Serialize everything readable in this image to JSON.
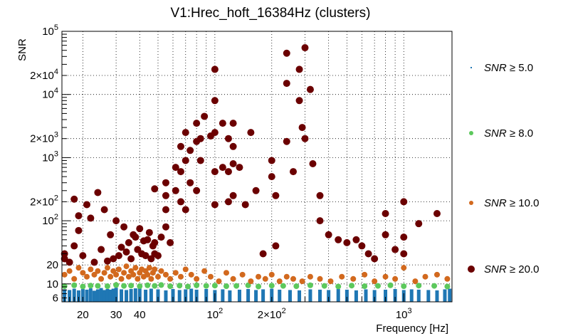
{
  "chart_data": {
    "type": "scatter",
    "title": "V1:Hrec_hoft_16384Hz (clusters)",
    "xlabel": "Frequency [Hz]",
    "ylabel": "SNR",
    "xscale": "log",
    "yscale": "log",
    "xlim": [
      15.5,
      1800
    ],
    "ylim": [
      5.2,
      100000
    ],
    "grid": true,
    "legend_position": "right",
    "x_ticks": [
      {
        "v": 20,
        "label": "20"
      },
      {
        "v": 30,
        "label": "30"
      },
      {
        "v": 40,
        "label": "40"
      },
      {
        "v": 100,
        "label": "10",
        "sup": "2"
      },
      {
        "v": 200,
        "label": "2×10",
        "sup": "2"
      },
      {
        "v": 1000,
        "label": "10",
        "sup": "3"
      }
    ],
    "y_ticks": [
      {
        "v": 6,
        "label": "6"
      },
      {
        "v": 10,
        "label": "10"
      },
      {
        "v": 20,
        "label": "20"
      },
      {
        "v": 100,
        "label": "10",
        "sup": "2"
      },
      {
        "v": 200,
        "label": "2×10",
        "sup": "2"
      },
      {
        "v": 1000,
        "label": "10",
        "sup": "3"
      },
      {
        "v": 2000,
        "label": "2×10",
        "sup": "3"
      },
      {
        "v": 10000,
        "label": "10",
        "sup": "4"
      },
      {
        "v": 20000,
        "label": "2×10",
        "sup": "4"
      },
      {
        "v": 100000,
        "label": "10",
        "sup": "5"
      }
    ],
    "series": [
      {
        "name": "SNR ≥ 5.0",
        "label_var": "SNR",
        "label_rel": "≥ 5.0",
        "color": "#1f77b4",
        "marker": "bar",
        "x": [
          16,
          17,
          18,
          19,
          20,
          21,
          22,
          23,
          24,
          25,
          26,
          27,
          28,
          29,
          30,
          32,
          34,
          36,
          38,
          40,
          43,
          46,
          50,
          55,
          60,
          65,
          70,
          75,
          80,
          90,
          100,
          110,
          120,
          135,
          150,
          165,
          180,
          200,
          220,
          250,
          280,
          320,
          360,
          400,
          450,
          500,
          560,
          630,
          700,
          800,
          900,
          1000,
          1100,
          1200,
          1350,
          1500,
          1650,
          1750
        ],
        "y": [
          8.2,
          8.0,
          8.4,
          7.9,
          8.3,
          8.1,
          8.5,
          7.8,
          8.2,
          8.6,
          8.0,
          8.3,
          8.1,
          8.4,
          8.7,
          8.2,
          8.0,
          8.3,
          8.5,
          8.9,
          8.1,
          8.4,
          8.2,
          7.9,
          8.3,
          8.0,
          8.2,
          8.4,
          8.1,
          8.3,
          8.0,
          8.2,
          7.9,
          8.1,
          8.3,
          8.0,
          8.2,
          8.4,
          8.1,
          8.0,
          7.9,
          8.2,
          8.1,
          8.0,
          8.3,
          8.1,
          7.9,
          8.2,
          8.0,
          8.1,
          8.3,
          8.0,
          8.2,
          8.1,
          8.0,
          7.9,
          8.2,
          8.4
        ]
      },
      {
        "name": "SNR ≥ 8.0",
        "label_var": "SNR",
        "label_rel": "≥ 8.0",
        "color": "#5cc85c",
        "marker": "dot",
        "x": [
          16,
          18,
          20,
          22,
          24,
          27,
          30,
          33,
          36,
          40,
          44,
          48,
          52,
          58,
          65,
          72,
          80,
          90,
          100,
          115,
          130,
          150,
          170,
          200,
          230,
          270,
          320,
          380,
          450,
          530,
          620,
          730,
          850,
          1000,
          1200,
          1450,
          1700
        ],
        "y": [
          9.2,
          9.5,
          9.1,
          9.4,
          9.3,
          9.2,
          9.6,
          9.3,
          9.4,
          9.2,
          9.5,
          9.3,
          9.6,
          9.2,
          9.4,
          9.1,
          9.5,
          9.3,
          9.4,
          9.2,
          9.3,
          9.5,
          9.1,
          9.4,
          9.3,
          9.2,
          9.5,
          9.3,
          9.1,
          9.4,
          9.2,
          9.3,
          9.5,
          9.2,
          9.4,
          9.3,
          9.1
        ]
      },
      {
        "name": "SNR ≥ 10.0",
        "label_var": "SNR",
        "label_rel": "≥ 10.0",
        "color": "#d2691e",
        "marker": "dot",
        "x": [
          16,
          17,
          18,
          19,
          20,
          21,
          22,
          23,
          24,
          25,
          26,
          27,
          28,
          29,
          30,
          31,
          32,
          33,
          34,
          35,
          36,
          37,
          38,
          39,
          40,
          41,
          42,
          43,
          44,
          45,
          46,
          47,
          48,
          50,
          52,
          55,
          58,
          62,
          66,
          70,
          75,
          80,
          88,
          95,
          105,
          115,
          125,
          140,
          155,
          170,
          185,
          200,
          220,
          240,
          260,
          290,
          320,
          360,
          410,
          470,
          540,
          620,
          700,
          800,
          900,
          1000,
          1150,
          1300,
          1500,
          1700
        ],
        "y": [
          14,
          16,
          12,
          18,
          15,
          13,
          17,
          14,
          16,
          12,
          15,
          18,
          13,
          16,
          14,
          17,
          12,
          15,
          19,
          13,
          16,
          14,
          18,
          12,
          15,
          17,
          13,
          16,
          14,
          18,
          12,
          15,
          17,
          13,
          16,
          14,
          12,
          15,
          13,
          17,
          14,
          12,
          16,
          13,
          11,
          15,
          12,
          14,
          11,
          13,
          12,
          14,
          11,
          13,
          12,
          11,
          13,
          12,
          11,
          13,
          12,
          14,
          11,
          13,
          12,
          18,
          11,
          13,
          14,
          12
        ]
      },
      {
        "name": "SNR ≥ 20.0",
        "label_var": "SNR",
        "label_rel": "≥ 20.0",
        "color": "#6b0000",
        "marker": "bigdot",
        "x": [
          16,
          16,
          17,
          18,
          18,
          19,
          19,
          20,
          21,
          22,
          23,
          24,
          25,
          26,
          27,
          28,
          29,
          30,
          31,
          32,
          33,
          34,
          35,
          36,
          37,
          38,
          39,
          40,
          41,
          42,
          43,
          44,
          45,
          46,
          47,
          48,
          48,
          48,
          50,
          52,
          55,
          55,
          55,
          55,
          58,
          62,
          62,
          66,
          66,
          66,
          70,
          70,
          70,
          74,
          74,
          80,
          80,
          80,
          84,
          84,
          88,
          95,
          100,
          100,
          100,
          100,
          100,
          110,
          110,
          118,
          118,
          118,
          125,
          125,
          125,
          125,
          135,
          145,
          155,
          165,
          180,
          200,
          200,
          210,
          210,
          240,
          240,
          240,
          260,
          280,
          280,
          290,
          300,
          300,
          320,
          330,
          360,
          360,
          400,
          450,
          500,
          560,
          600,
          650,
          700,
          800,
          800,
          900,
          1000,
          1000,
          1000,
          1200,
          1500
        ],
        "y": [
          25,
          30,
          22,
          40,
          220,
          70,
          120,
          28,
          180,
          110,
          22,
          280,
          35,
          150,
          23,
          60,
          25,
          100,
          28,
          38,
          80,
          32,
          45,
          25,
          60,
          55,
          35,
          75,
          30,
          48,
          28,
          50,
          65,
          25,
          40,
          320,
          45,
          30,
          28,
          55,
          400,
          250,
          150,
          80,
          45,
          700,
          300,
          1500,
          600,
          200,
          2500,
          900,
          150,
          1300,
          400,
          300,
          1800,
          3500,
          900,
          2000,
          4500,
          2200,
          25000,
          8000,
          2500,
          600,
          180,
          3500,
          700,
          2000,
          600,
          200,
          3500,
          1500,
          800,
          250,
          700,
          180,
          2500,
          300,
          30,
          900,
          500,
          250,
          40,
          45000,
          15000,
          1800,
          600,
          25000,
          8000,
          3000,
          55000,
          2000,
          12000,
          800,
          250,
          100,
          60,
          50,
          45,
          50,
          40,
          30,
          25,
          60,
          130,
          35,
          200,
          55,
          30,
          90,
          130
        ]
      }
    ]
  }
}
